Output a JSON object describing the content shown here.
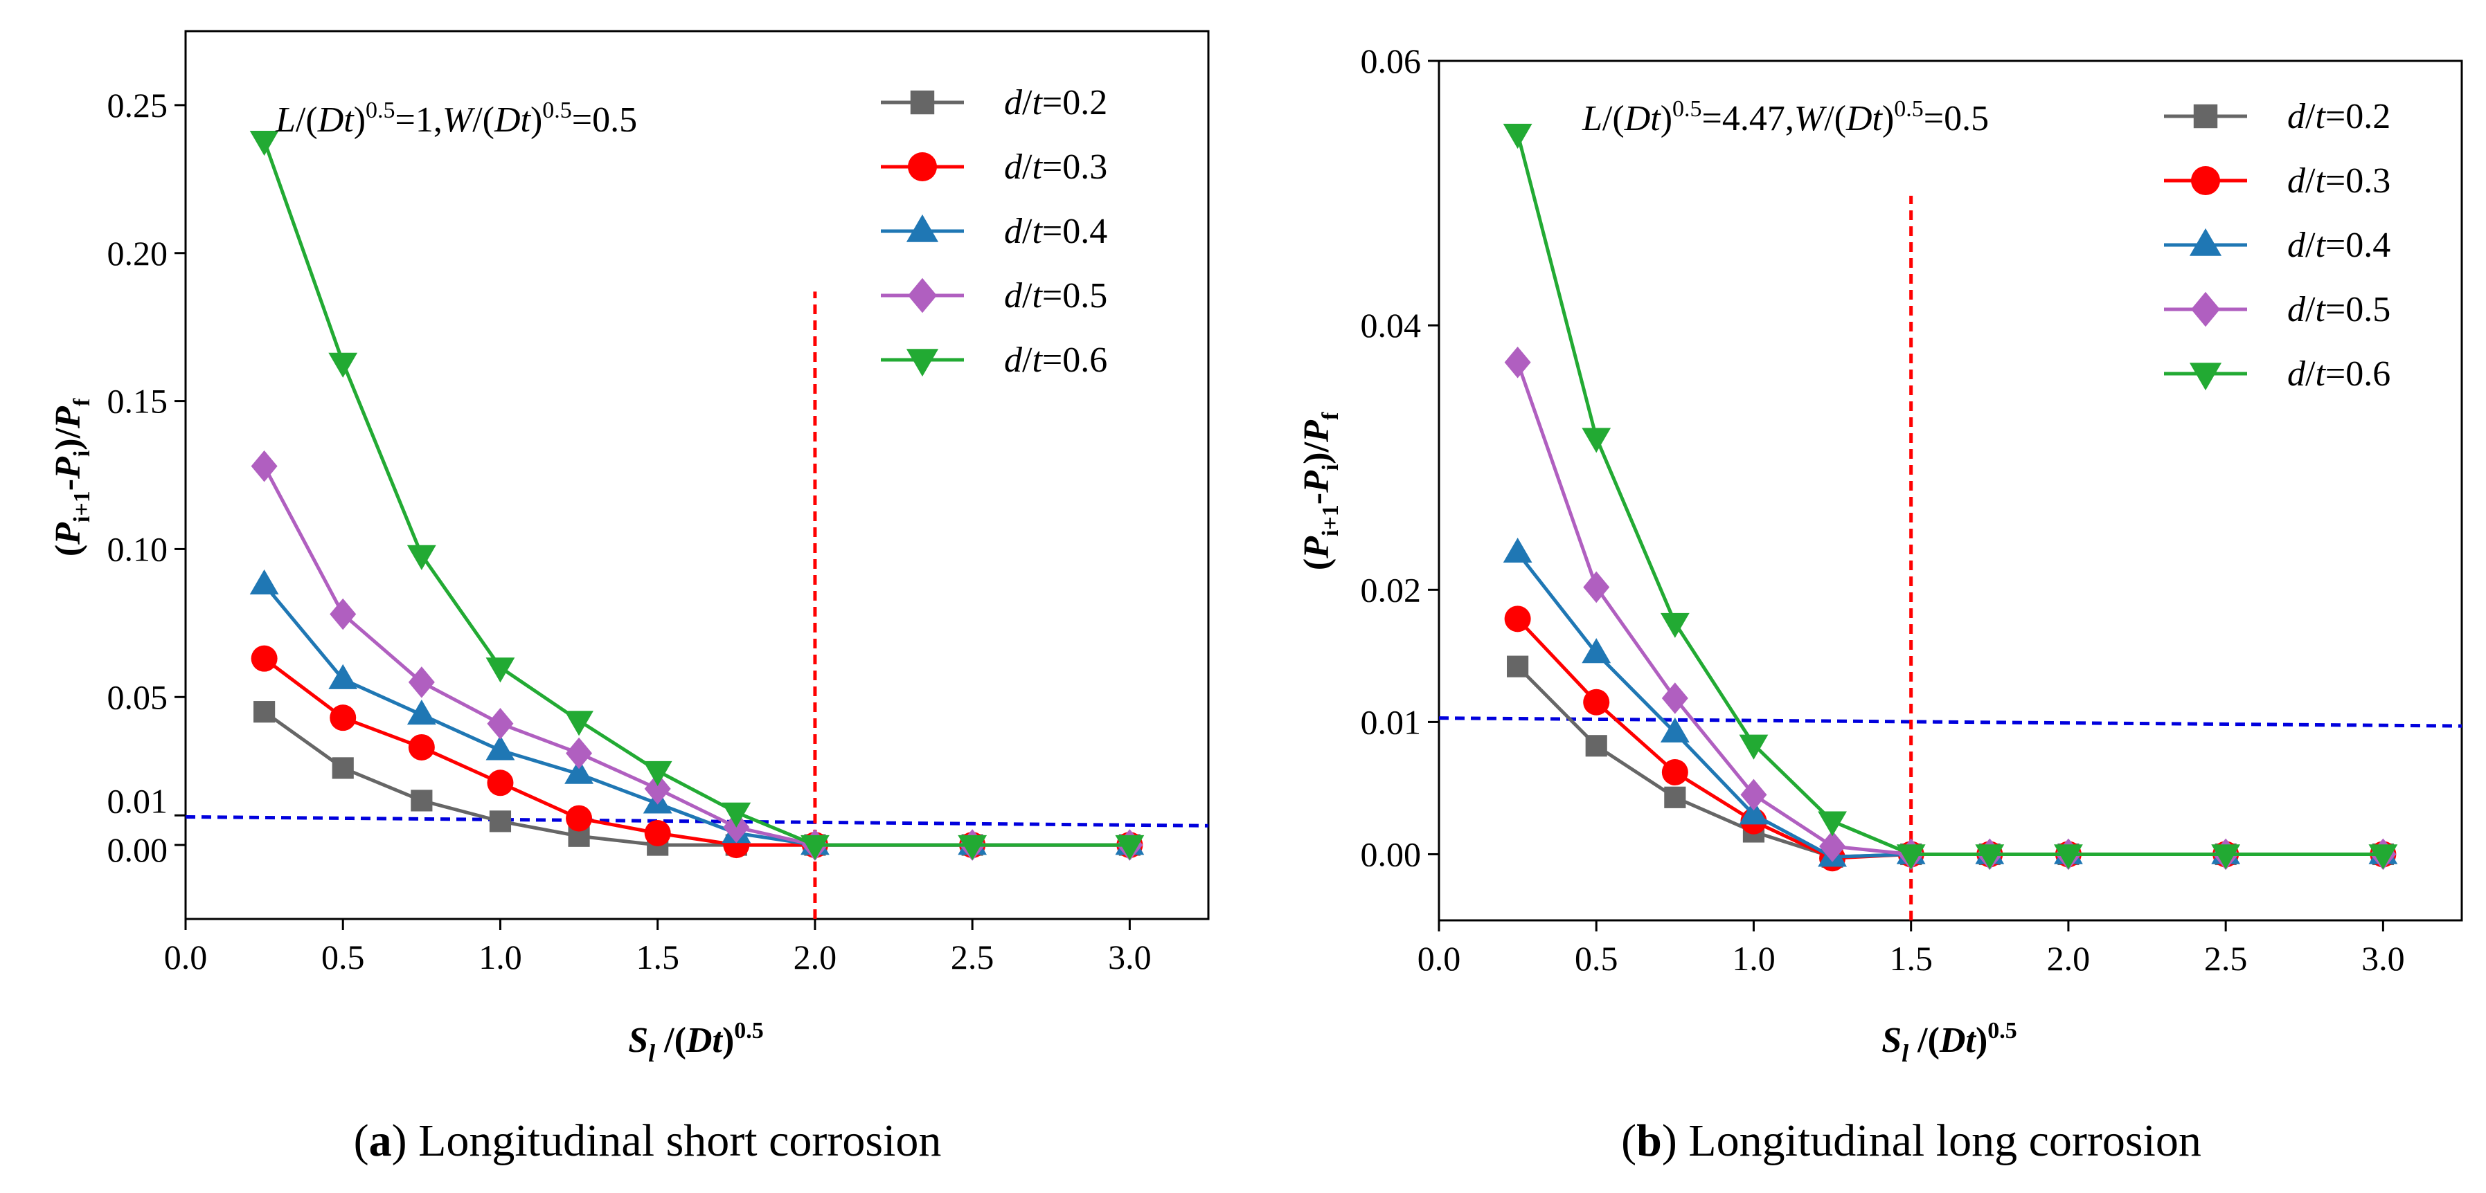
{
  "chart_data": [
    {
      "type": "line",
      "caption_letter": "a",
      "caption_text": "Longitudinal short corrosion",
      "annotation": {
        "L": "L",
        "D": "D",
        "t": "t",
        "exp": "0.5",
        "v1": "=1,",
        "W": "W",
        "v2": "=0.5"
      },
      "ylabel": {
        "P": "P",
        "sub_i1": "i+1",
        "sub_i": "i",
        "sub_f": "f"
      },
      "xlabel": {
        "S": "S",
        "sub": "l",
        "D": "D",
        "t": "t",
        "exp": "0.5"
      },
      "xlim": [
        0.0,
        3.25
      ],
      "ylim": [
        -0.025,
        0.275
      ],
      "x_ticks": [
        0.0,
        0.5,
        1.0,
        1.5,
        2.0,
        2.5,
        3.0
      ],
      "x_tick_labels": [
        "0.0",
        "0.5",
        "1.0",
        "1.5",
        "2.0",
        "2.5",
        "3.0"
      ],
      "y_ticks": [
        0.0,
        0.01,
        0.05,
        0.1,
        0.15,
        0.2,
        0.25
      ],
      "y_tick_labels": [
        "0.00",
        "0.01",
        "0.05",
        "0.10",
        "0.15",
        "0.20",
        "0.25"
      ],
      "x": [
        0.25,
        0.5,
        0.75,
        1.0,
        1.25,
        1.5,
        1.75,
        2.0,
        2.5,
        3.0
      ],
      "series": [
        {
          "name": "d/t=0.2",
          "label_pre": "=0.2",
          "color": "#666666",
          "marker": "square",
          "values": [
            0.045,
            0.026,
            0.015,
            0.008,
            0.003,
            0.0,
            0.0,
            0.0,
            0.0,
            0.0
          ]
        },
        {
          "name": "d/t=0.3",
          "label_pre": "=0.3",
          "color": "#ff0000",
          "marker": "circle",
          "values": [
            0.063,
            0.043,
            0.033,
            0.021,
            0.009,
            0.004,
            0.0,
            0.0,
            0.0,
            0.0
          ]
        },
        {
          "name": "d/t=0.4",
          "label_pre": "=0.4",
          "color": "#1f77b4",
          "marker": "triangle-up",
          "values": [
            0.088,
            0.056,
            0.044,
            0.032,
            0.024,
            0.014,
            0.004,
            0.0,
            0.0,
            0.0
          ]
        },
        {
          "name": "d/t=0.5",
          "label_pre": "=0.5",
          "color": "#b05fc0",
          "marker": "diamond",
          "values": [
            0.128,
            0.078,
            0.055,
            0.041,
            0.031,
            0.019,
            0.006,
            0.0,
            0.0,
            0.0
          ]
        },
        {
          "name": "d/t=0.6",
          "label_pre": "=0.6",
          "color": "#22aa33",
          "marker": "triangle-down",
          "values": [
            0.238,
            0.163,
            0.098,
            0.06,
            0.042,
            0.025,
            0.011,
            0.0,
            0.0,
            0.0
          ]
        }
      ],
      "ref_h": {
        "x": [
          0.0,
          3.25
        ],
        "y": [
          0.0095,
          0.0065
        ],
        "color": "#0000dd"
      },
      "ref_v": {
        "x": 2.0,
        "y": [
          -0.025,
          0.187
        ],
        "color": "#ff0000"
      }
    },
    {
      "type": "line",
      "caption_letter": "b",
      "caption_text": "Longitudinal long corrosion",
      "annotation": {
        "L": "L",
        "D": "D",
        "t": "t",
        "exp": "0.5",
        "v1": "=4.47,",
        "W": "W",
        "v2": "=0.5"
      },
      "ylabel": {
        "P": "P",
        "sub_i1": "i+1",
        "sub_i": "i",
        "sub_f": "f"
      },
      "xlabel": {
        "S": "S",
        "sub": "l",
        "D": "D",
        "t": "t",
        "exp": "0.5"
      },
      "xlim": [
        0.0,
        3.25
      ],
      "ylim": [
        -0.005,
        0.06
      ],
      "x_ticks": [
        0.0,
        0.5,
        1.0,
        1.5,
        2.0,
        2.5,
        3.0
      ],
      "x_tick_labels": [
        "0.0",
        "0.5",
        "1.0",
        "1.5",
        "2.0",
        "2.5",
        "3.0"
      ],
      "y_ticks": [
        0.0,
        0.01,
        0.02,
        0.04,
        0.06
      ],
      "y_tick_labels": [
        "0.00",
        "0.01",
        "0.02",
        "0.04",
        "0.06"
      ],
      "x": [
        0.25,
        0.5,
        0.75,
        1.0,
        1.25,
        1.5,
        1.75,
        2.0,
        2.5,
        3.0
      ],
      "series": [
        {
          "name": "d/t=0.2",
          "label_pre": "=0.2",
          "color": "#666666",
          "marker": "square",
          "values": [
            0.0142,
            0.0082,
            0.0043,
            0.0017,
            -0.0002,
            0.0,
            0.0,
            0.0,
            0.0,
            0.0
          ]
        },
        {
          "name": "d/t=0.3",
          "label_pre": "=0.3",
          "color": "#ff0000",
          "marker": "circle",
          "values": [
            0.0178,
            0.0115,
            0.0062,
            0.0025,
            -0.0003,
            0.0,
            0.0,
            0.0,
            0.0,
            0.0
          ]
        },
        {
          "name": "d/t=0.4",
          "label_pre": "=0.4",
          "color": "#1f77b4",
          "marker": "triangle-up",
          "values": [
            0.0228,
            0.0152,
            0.0092,
            0.003,
            -0.0002,
            0.0,
            0.0,
            0.0,
            0.0,
            0.0
          ]
        },
        {
          "name": "d/t=0.5",
          "label_pre": "=0.5",
          "color": "#b05fc0",
          "marker": "diamond",
          "values": [
            0.0372,
            0.0202,
            0.0118,
            0.0045,
            0.0006,
            0.0,
            0.0,
            0.0,
            0.0,
            0.0
          ]
        },
        {
          "name": "d/t=0.6",
          "label_pre": "=0.6",
          "color": "#22aa33",
          "marker": "triangle-down",
          "values": [
            0.0545,
            0.0315,
            0.0175,
            0.0083,
            0.0025,
            0.0,
            0.0,
            0.0,
            0.0,
            0.0
          ]
        }
      ],
      "ref_h": {
        "x": [
          0.0,
          3.25
        ],
        "y": [
          0.0103,
          0.0097
        ],
        "color": "#0000dd"
      },
      "ref_v": {
        "x": 1.5,
        "y": [
          -0.005,
          0.0498
        ],
        "color": "#ff0000"
      }
    }
  ]
}
